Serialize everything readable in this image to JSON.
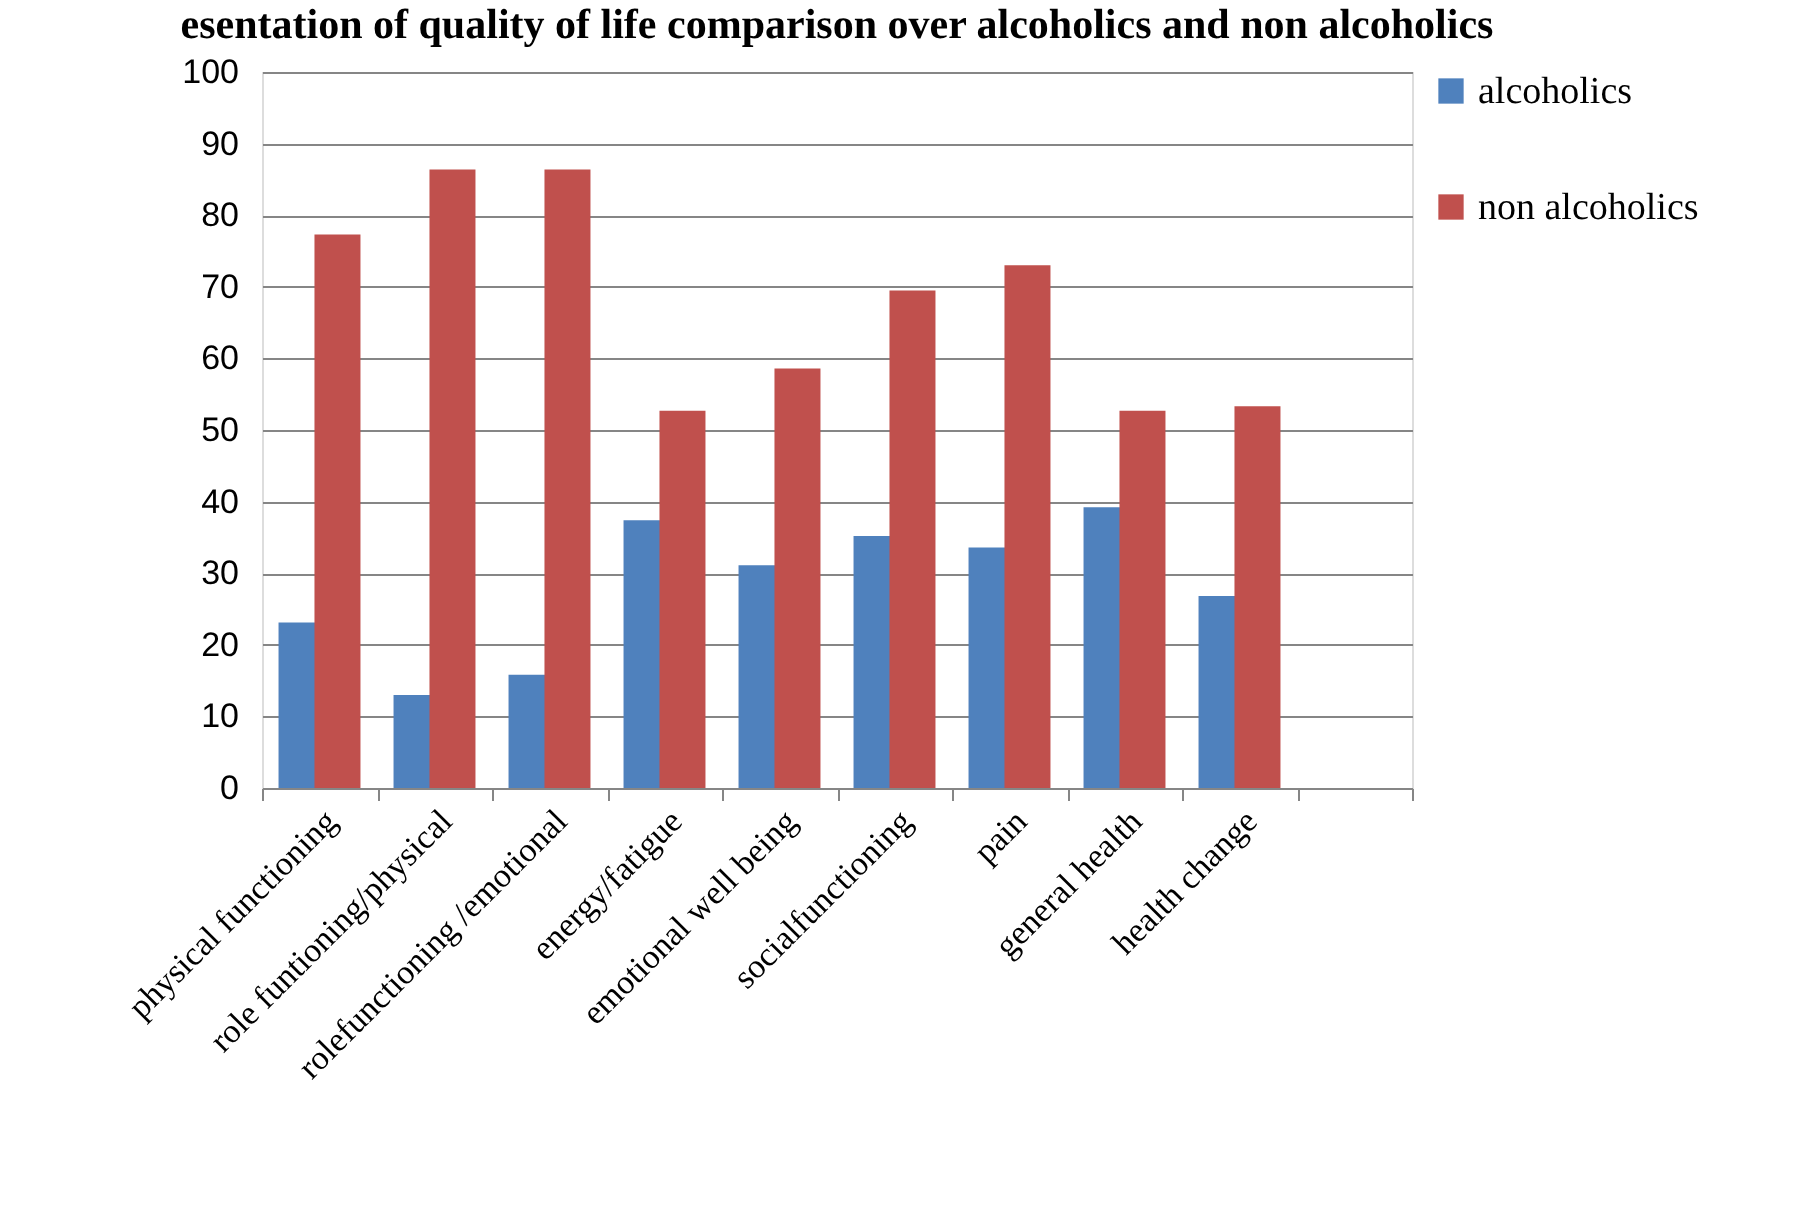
{
  "chart_data": {
    "type": "bar",
    "title": "esentation of quality of life comparison over alcoholics and non alcoholics",
    "categories": [
      "physical functioning",
      "role funtioning/physical",
      "rolefunctioning /emotional",
      "energy/fatigue",
      "emotional well being",
      "socialfunctioning",
      "pain",
      "general health",
      "health change",
      null
    ],
    "series": [
      {
        "name": "alcoholics",
        "color": "#4f81bd",
        "values": [
          23.1,
          13.0,
          15.8,
          37.4,
          31.1,
          35.2,
          33.6,
          39.2,
          26.8,
          null
        ]
      },
      {
        "name": "non alcoholics",
        "color": "#c0504d",
        "values": [
          77.3,
          86.4,
          86.4,
          52.7,
          58.6,
          69.5,
          73.0,
          52.7,
          53.3,
          null
        ]
      }
    ],
    "ylim": [
      0,
      100
    ],
    "yticks": [
      0,
      10,
      20,
      30,
      40,
      50,
      60,
      70,
      80,
      90,
      100
    ],
    "grid": "y",
    "legend": "right"
  }
}
